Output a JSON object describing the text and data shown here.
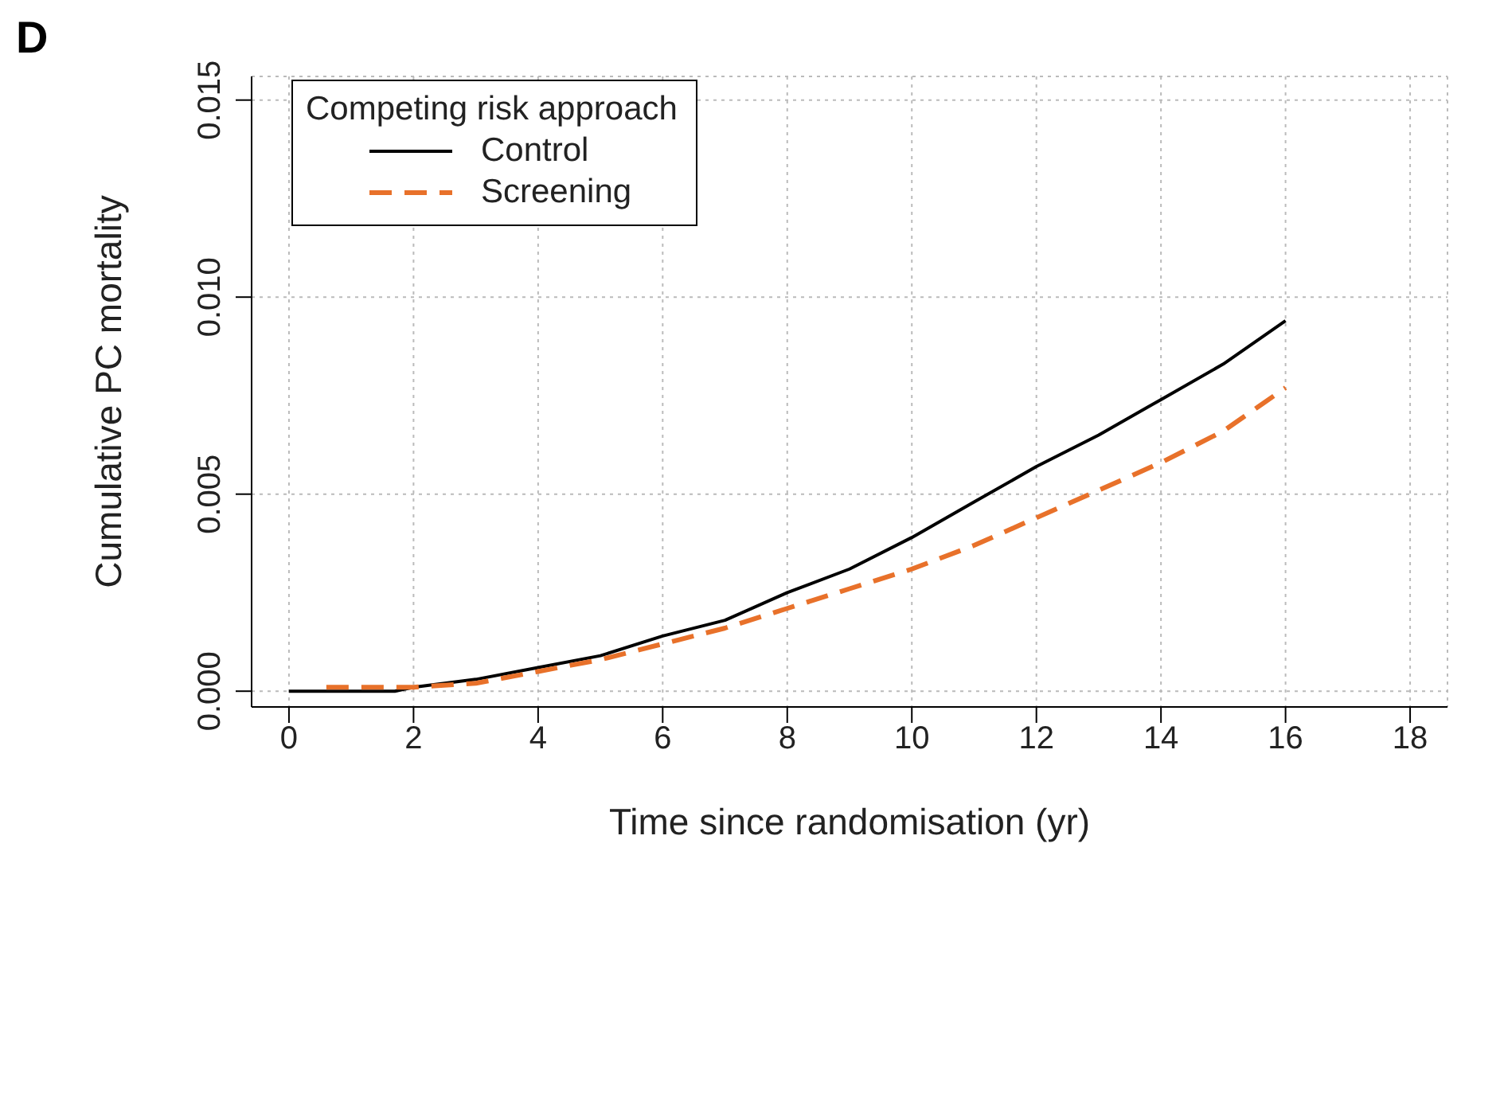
{
  "chart_data": {
    "type": "line",
    "title": "D",
    "xlabel": "Time since randomisation (yr)",
    "ylabel": "Cumulative PC mortality",
    "legend_title": "Competing risk approach",
    "xlim": [
      -0.6,
      18.6
    ],
    "xticks": [
      0,
      2,
      4,
      6,
      8,
      10,
      12,
      14,
      16,
      18
    ],
    "ylim": [
      -0.0004,
      0.0156
    ],
    "yticks": [
      {
        "value": 0,
        "label": "0.000"
      },
      {
        "value": 0.005,
        "label": "0.005"
      },
      {
        "value": 0.01,
        "label": "0.010"
      },
      {
        "value": 0.015,
        "label": "0.015"
      }
    ],
    "grid": true,
    "legend": "top left",
    "series": [
      {
        "name": "Control",
        "color": "#000000",
        "line_style": "solid",
        "x": [
          0,
          1,
          1.7,
          2,
          3,
          4,
          5,
          6,
          7,
          8,
          9,
          10,
          11,
          12,
          13,
          14,
          15,
          16
        ],
        "values": [
          0,
          0,
          0,
          0.0001,
          0.0003,
          0.0006,
          0.0009,
          0.0014,
          0.0018,
          0.0025,
          0.0031,
          0.0039,
          0.0048,
          0.0057,
          0.0065,
          0.0074,
          0.0083,
          0.0094
        ]
      },
      {
        "name": "Screening",
        "color": "#e8712a",
        "line_style": "dashed",
        "x": [
          0.6,
          1.5,
          2,
          3,
          4,
          5,
          6,
          7,
          8,
          9,
          10,
          11,
          12,
          13,
          14,
          15,
          16
        ],
        "values": [
          0.0001,
          0.0001,
          0.0001,
          0.0002,
          0.0005,
          0.0008,
          0.0012,
          0.0016,
          0.0021,
          0.0026,
          0.0031,
          0.0037,
          0.0044,
          0.0051,
          0.0058,
          0.0066,
          0.0077
        ]
      }
    ]
  }
}
